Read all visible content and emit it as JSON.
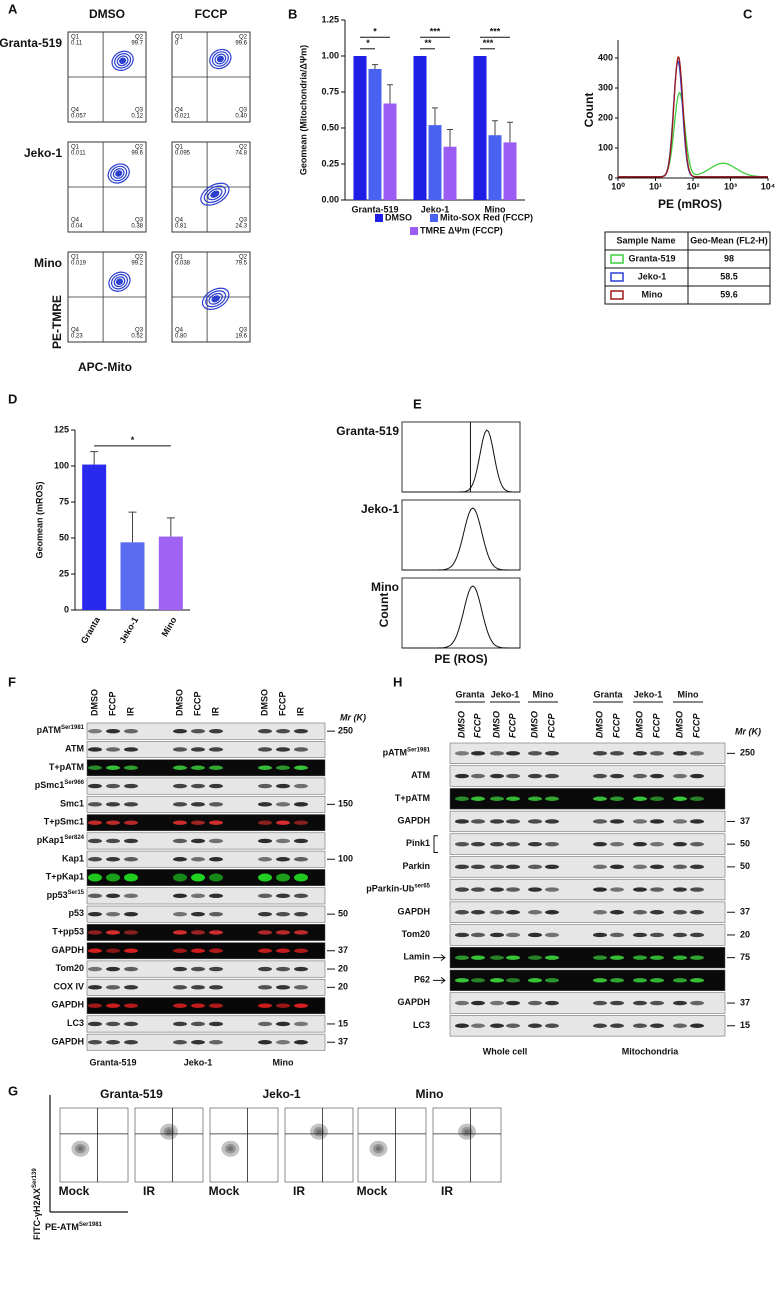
{
  "panel_labels": [
    "A",
    "B",
    "C",
    "D",
    "E",
    "F",
    "G",
    "H"
  ],
  "panel_a": {
    "columns": [
      "DMSO",
      "FCCP"
    ],
    "quadrant_names": [
      "Q1",
      "Q2",
      "Q4",
      "Q3"
    ],
    "rows": [
      {
        "name": "Granta-519",
        "plots": [
          [
            "0.11",
            "99.7",
            "0.057",
            "0.12"
          ],
          [
            "0",
            "99.6",
            "0.021",
            "0.40"
          ]
        ]
      },
      {
        "name": "Jeko-1",
        "plots": [
          [
            "0.011",
            "99.6",
            "0.04",
            "0.38"
          ],
          [
            "0.095",
            "74.8",
            "0.81",
            "24.3"
          ]
        ]
      },
      {
        "name": "Mino",
        "plots": [
          [
            "0.019",
            "99.2",
            "0.23",
            "0.52"
          ],
          [
            "0.038",
            "79.5",
            "0.80",
            "19.6"
          ]
        ]
      }
    ],
    "y_label": "PE-TMRE",
    "x_label": "APC-Mito"
  },
  "chart_data": [
    {
      "type": "bar",
      "y_label": "Geomean (Mitochondria/ΔΨm)",
      "categories": [
        "Granta-519",
        "Jeko-1",
        "Mino"
      ],
      "series": [
        {
          "name": "DMSO",
          "color": "#1e1ee6",
          "values": [
            1.0,
            1.0,
            1.0
          ]
        },
        {
          "name": "Mito-SOX Red (FCCP)",
          "color": "#4a62f0",
          "values": [
            0.91,
            0.52,
            0.45
          ],
          "errors": [
            0.03,
            0.12,
            0.1
          ]
        },
        {
          "name": "TMRE ΔΨm (FCCP)",
          "color": "#9a5cf2",
          "values": [
            0.67,
            0.37,
            0.4
          ],
          "errors": [
            0.13,
            0.12,
            0.14
          ]
        }
      ],
      "ylim": [
        0,
        1.25
      ],
      "yticks": [
        {
          "value": 0,
          "label": "0.00"
        },
        {
          "value": 0.25,
          "label": "0.25"
        },
        {
          "value": 0.5,
          "label": "0.50"
        },
        {
          "value": 0.75,
          "label": "0.75"
        },
        {
          "value": 1,
          "label": "1.00"
        },
        {
          "value": 1.25,
          "label": "1.25"
        }
      ],
      "significance": [
        [
          "*",
          "*"
        ],
        [
          "***",
          "**"
        ],
        [
          "***",
          "***"
        ]
      ]
    },
    {
      "type": "bar",
      "y_label": "Geomean (mROS)",
      "categories": [
        "Granta",
        "Jeko-1",
        "Mino"
      ],
      "values": [
        101,
        47,
        51
      ],
      "errors": [
        9,
        21,
        13
      ],
      "colors": [
        "#2a2aee",
        "#5b6cf0",
        "#a062f2"
      ],
      "ylim": [
        0,
        125
      ],
      "yticks": [
        0,
        25,
        50,
        75,
        100,
        125
      ],
      "significance": "*"
    }
  ],
  "panel_c": {
    "y_label": "Count",
    "x_label": "PE (mROS)",
    "ylim": [
      0,
      460
    ],
    "yticks": [
      0,
      100,
      200,
      300,
      400
    ],
    "xlim": [
      1,
      10000
    ],
    "log_x": true,
    "xticks": [
      {
        "value": 1,
        "label": "10⁰"
      },
      {
        "value": 10,
        "label": "10¹"
      },
      {
        "value": 100,
        "label": "10²"
      },
      {
        "value": 1000,
        "label": "10³"
      },
      {
        "value": 10000,
        "label": "10⁴"
      }
    ],
    "table": {
      "header": [
        "Sample Name",
        "Geo-Mean (FL2-H)"
      ],
      "rows": [
        {
          "name": "Granta-519",
          "color": "#3ecf3e",
          "value": "98"
        },
        {
          "name": "Jeko-1",
          "color": "#2a3fd6",
          "value": "58.5"
        },
        {
          "name": "Mino",
          "color": "#a01818",
          "value": "59.6"
        }
      ]
    }
  },
  "panel_e": {
    "rows": [
      "Granta-519",
      "Jeko-1",
      "Mino"
    ],
    "y_label": "Count",
    "x_label": "PE (ROS)"
  },
  "panel_f": {
    "lanes": [
      "DMSO",
      "FCCP",
      "IR"
    ],
    "mr_label": "Mr (K)",
    "groups": [
      "Granta-519",
      "Jeko-1",
      "Mino"
    ],
    "rows": [
      {
        "name": "pATM",
        "sup": "Ser1981",
        "mr": 250
      },
      {
        "name": "ATM"
      },
      {
        "name": "T+pATM"
      },
      {
        "name": "pSmc1",
        "sup": "Ser966"
      },
      {
        "name": "Smc1",
        "mr": 150
      },
      {
        "name": "T+pSmc1"
      },
      {
        "name": "pKap1",
        "sup": "Ser824"
      },
      {
        "name": "Kap1",
        "mr": 100
      },
      {
        "name": "T+pKap1"
      },
      {
        "name": "pp53",
        "sup": "Ser15"
      },
      {
        "name": "p53",
        "mr": 50
      },
      {
        "name": "T+pp53"
      },
      {
        "name": "GAPDH",
        "mr": 37
      },
      {
        "name": "Tom20",
        "mr": 20
      },
      {
        "name": "COX IV",
        "mr": 20
      },
      {
        "name": "GAPDH"
      },
      {
        "name": "LC3",
        "mr": 15
      },
      {
        "name": "GAPDH",
        "mr": 37
      }
    ]
  },
  "panel_g": {
    "cells": [
      "Granta-519",
      "Jeko-1",
      "Mino"
    ],
    "conditions": [
      "Mock",
      "IR"
    ],
    "y_label": {
      "name": "FITC-γH2AX",
      "sup": "Ser139"
    },
    "x_label": {
      "name": "PE-ATM",
      "sup": "Ser1981"
    }
  },
  "panel_h": {
    "groups": [
      "Granta",
      "Jeko-1",
      "Mino"
    ],
    "lanes": [
      "DMSO",
      "FCCP"
    ],
    "fractions": [
      "Whole cell",
      "Mitochondria"
    ],
    "mr_label": "Mr (K)",
    "rows": [
      {
        "name": "pATM",
        "sup": "Ser1981",
        "mr": 250
      },
      {
        "name": "ATM"
      },
      {
        "name": "T+pATM"
      },
      {
        "name": "GAPDH",
        "mr": 37
      },
      {
        "name": "Pink1",
        "mr": 50
      },
      {
        "name": "Parkin",
        "mr": 50
      },
      {
        "name": "pParkin-Ub",
        "sup": "ser65"
      },
      {
        "name": "GAPDH",
        "mr": 37
      },
      {
        "name": "Tom20",
        "mr": 20
      },
      {
        "name": "Lamin",
        "mr": 75
      },
      {
        "name": "P62"
      },
      {
        "name": "GAPDH",
        "mr": 37
      },
      {
        "name": "LC3",
        "mr": 15
      }
    ]
  }
}
